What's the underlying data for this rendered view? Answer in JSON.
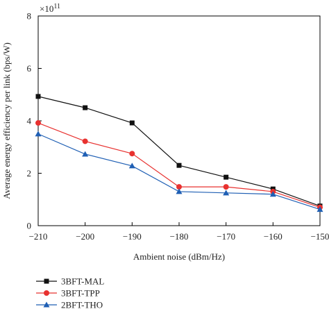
{
  "chart_data": {
    "type": "line",
    "x": [
      -210,
      -200,
      -190,
      -180,
      -170,
      -160,
      -150
    ],
    "xlim": [
      -210,
      -150
    ],
    "xticks": [
      -210,
      -200,
      -190,
      -180,
      -170,
      -160,
      -150
    ],
    "xtick_labels": [
      "−210",
      "−200",
      "−190",
      "−180",
      "−170",
      "−160",
      "−150"
    ],
    "ylim": [
      0,
      8
    ],
    "yticks": [
      0,
      2,
      4,
      6,
      8
    ],
    "ytick_labels": [
      "0",
      "2",
      "4",
      "6",
      "8"
    ],
    "y_multiplier": "×10",
    "y_multiplier_exp": "11",
    "xlabel": "Ambient noise (dBm/Hz)",
    "ylabel": "Average energy efficiency per link (bps/W)",
    "grid": false,
    "legend_position": "bottom-left",
    "series": [
      {
        "name": "3BFT-MAL",
        "color": "#111111",
        "marker": "square",
        "values": [
          4.93,
          4.5,
          3.92,
          2.3,
          1.85,
          1.4,
          0.75
        ]
      },
      {
        "name": "3BFT-TPP",
        "color": "#e8312f",
        "marker": "circle",
        "values": [
          3.92,
          3.22,
          2.75,
          1.48,
          1.48,
          1.3,
          0.7
        ]
      },
      {
        "name": "2BFT-THO",
        "color": "#1f5fb4",
        "marker": "triangle",
        "values": [
          3.5,
          2.73,
          2.28,
          1.3,
          1.25,
          1.2,
          0.62
        ]
      }
    ]
  }
}
